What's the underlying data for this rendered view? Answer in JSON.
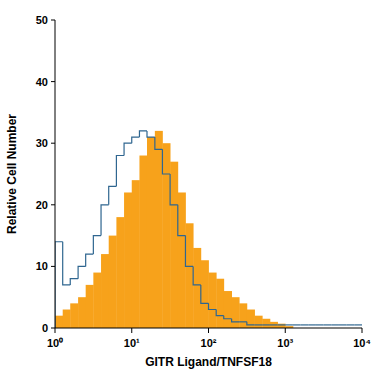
{
  "chart_data": {
    "type": "histogram",
    "log": "x",
    "x_label": "GITR Ligand/TNFSF18",
    "y_label": "Relative Cell Number",
    "bins": [
      1,
      1.26,
      1.58,
      2,
      2.51,
      3.16,
      3.98,
      5.01,
      6.31,
      7.94,
      10,
      12.6,
      15.8,
      20,
      25.1,
      31.6,
      39.8,
      50.1,
      63.1,
      79.4,
      100,
      126,
      158,
      200,
      251,
      316,
      398,
      501,
      631,
      794,
      1000,
      1259,
      1585,
      1995,
      2512,
      3162,
      3981,
      5012,
      6310,
      7943,
      10000
    ],
    "series": [
      {
        "type": "bar",
        "color": "#f7a21b",
        "values": [
          2,
          3,
          4,
          5,
          7,
          9,
          12,
          15,
          18,
          22,
          24,
          28,
          31,
          32,
          30,
          27,
          22,
          17,
          13,
          11,
          9,
          8,
          6,
          5,
          4,
          3,
          2,
          1.5,
          1,
          0.7,
          0.3,
          0,
          0,
          0,
          0,
          0,
          0,
          0,
          0,
          0
        ]
      },
      {
        "type": "step",
        "color": "#2f6690",
        "values": [
          14,
          7,
          8,
          10,
          12,
          15,
          20,
          23,
          28,
          30,
          31,
          32,
          31,
          29,
          25,
          20,
          15,
          10,
          7,
          4,
          3,
          2,
          1.5,
          1,
          1,
          0.5,
          0.5,
          0.5,
          0.5,
          0.5,
          0.5,
          0.5,
          0.5,
          0.5,
          0.5,
          0.5,
          0.5,
          0.5,
          0.5,
          0.5
        ]
      }
    ],
    "xlim": [
      1,
      10000
    ],
    "xticks": [
      {
        "value": 1,
        "label": "10⁰"
      },
      {
        "value": 10,
        "label": "10¹"
      },
      {
        "value": 100,
        "label": "10²"
      },
      {
        "value": 1000,
        "label": "10³"
      },
      {
        "value": 10000,
        "label": "10⁴"
      }
    ],
    "ylim": [
      0,
      50
    ],
    "yticks": [
      0,
      10,
      20,
      30,
      40,
      50
    ]
  }
}
